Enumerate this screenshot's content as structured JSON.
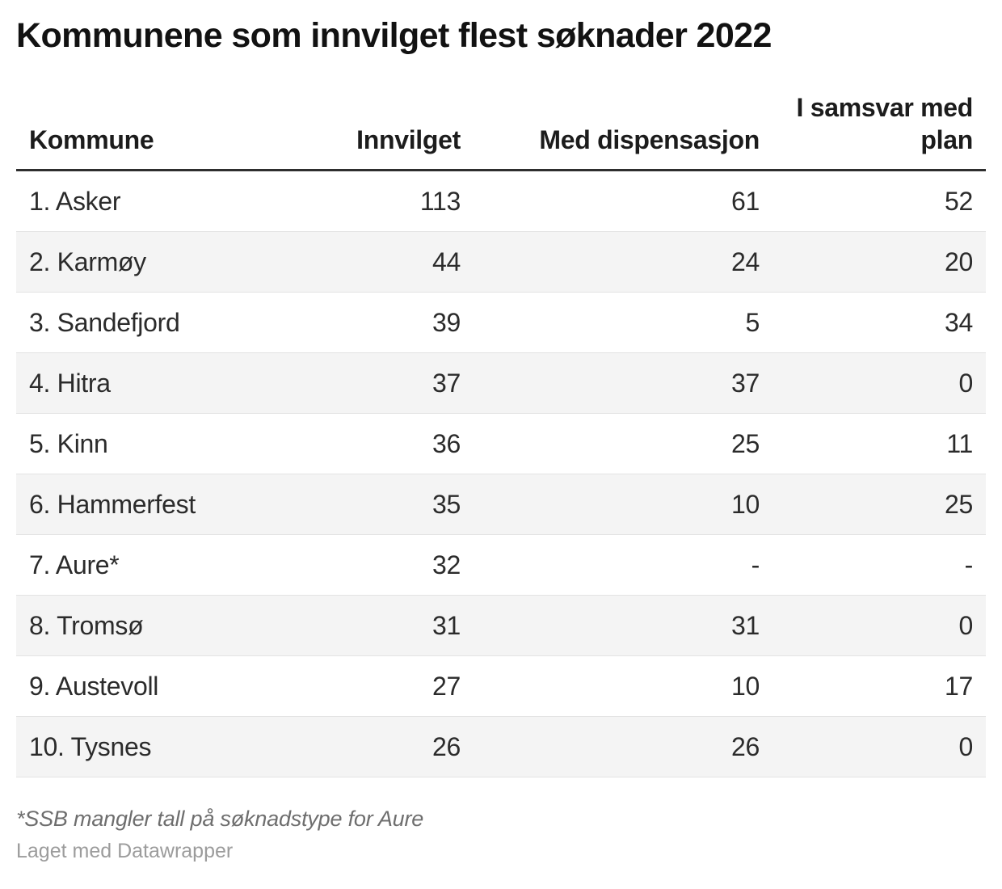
{
  "title": "Kommunene som innvilget flest søknader 2022",
  "chart_data": {
    "type": "table",
    "title": "Kommunene som innvilget flest søknader 2022",
    "columns": [
      "Kommune",
      "Innvilget",
      "Med dispensasjon",
      "I samsvar med plan"
    ],
    "rows": [
      [
        "1. Asker",
        113,
        61,
        52
      ],
      [
        "2. Karmøy",
        44,
        24,
        20
      ],
      [
        "3. Sandefjord",
        39,
        5,
        34
      ],
      [
        "4. Hitra",
        37,
        37,
        0
      ],
      [
        "5. Kinn",
        36,
        25,
        11
      ],
      [
        "6. Hammerfest",
        35,
        10,
        25
      ],
      [
        "7. Aure*",
        32,
        "-",
        "-"
      ],
      [
        "8. Tromsø",
        31,
        31,
        0
      ],
      [
        "9. Austevoll",
        27,
        10,
        17
      ],
      [
        "10. Tysnes",
        26,
        26,
        0
      ]
    ],
    "footnote": "*SSB mangler tall på søknadstype for Aure",
    "attribution": "Laget med Datawrapper",
    "layout_hints": {
      "zebra_striping": true,
      "header_rule": "thick",
      "number_columns_align": "right"
    }
  },
  "colors": {
    "zebra_row": "#f4f4f4",
    "header_rule": "#2e2e2e",
    "row_border": "#e3e3e3",
    "title_text": "#121212",
    "body_text": "#2b2b2b",
    "footnote_text": "#6e6e6e",
    "attribution_text": "#9c9c9c"
  }
}
